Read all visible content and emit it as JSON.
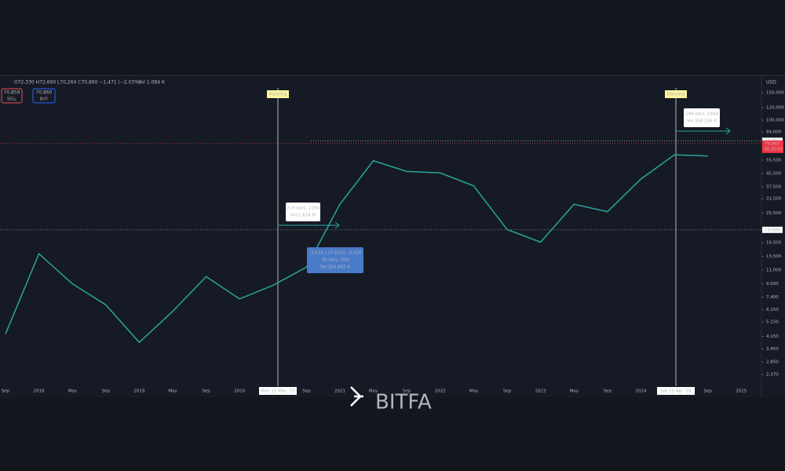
{
  "chart_data": {
    "type": "line",
    "log_scale": true,
    "color": "#26a69a",
    "legend": {
      "ohlc": "O72,330 H72,660 L70,264 C70,860 −1,471 (−2.03%)",
      "volume": "Vol 1.084 K",
      "sell_price": "70,859",
      "sell": "SELL",
      "buy_price": "70,860",
      "buy": "BUY"
    },
    "currency": "USD",
    "categories": [
      "Sep",
      "2018",
      "May",
      "Sep",
      "2019",
      "May",
      "Sep",
      "2020",
      null,
      "Sep",
      "2021",
      "May",
      "Sep",
      "2022",
      "May",
      "Sep",
      "2023",
      "May",
      "Sep",
      "2024",
      null,
      "Sep",
      "2025"
    ],
    "values": [
      4300,
      14000,
      9000,
      6600,
      3800,
      6000,
      10000,
      7200,
      8800,
      11500,
      29000,
      55000,
      47000,
      46000,
      38000,
      20000,
      16600,
      29000,
      26000,
      42000,
      60000,
      59000,
      null
    ],
    "ylim": [
      2040,
      191000
    ],
    "yticks": [
      {
        "value": 150000,
        "label": "150,000"
      },
      {
        "value": 120000,
        "label": "120,000"
      },
      {
        "value": 100000,
        "label": "100,000"
      },
      {
        "value": 84000,
        "label": "84,000"
      },
      {
        "value": 55500,
        "label": "55,500"
      },
      {
        "value": 45500,
        "label": "45,500"
      },
      {
        "value": 37500,
        "label": "37,500"
      },
      {
        "value": 31500,
        "label": "31,500"
      },
      {
        "value": 25500,
        "label": "25,500"
      },
      {
        "value": 16500,
        "label": "16,500"
      },
      {
        "value": 13500,
        "label": "13,500"
      },
      {
        "value": 11000,
        "label": "11,000"
      },
      {
        "value": 9000,
        "label": "9,000"
      },
      {
        "value": 7400,
        "label": "7,400"
      },
      {
        "value": 6150,
        "label": "6,150"
      },
      {
        "value": 5150,
        "label": "5,150"
      },
      {
        "value": 4150,
        "label": "4,150"
      },
      {
        "value": 3450,
        "label": "3,450"
      },
      {
        "value": 2850,
        "label": "2,850"
      },
      {
        "value": 2370,
        "label": "2,370"
      }
    ],
    "levels": [
      {
        "value": 73755,
        "label": "73,755"
      },
      {
        "value": 19898,
        "label": "19,898"
      }
    ],
    "last_price": {
      "value": 70860,
      "label": "70,860"
    },
    "countdown": "06:30:59",
    "halvings": [
      {
        "label": "Halving",
        "date": "Mon 11 May '20"
      },
      {
        "label": "Halving",
        "date": "Sat 20 Apr '24"
      }
    ],
    "measures": [
      {
        "lines": [
          "219 bars, 219d",
          "Vol 1.624 M"
        ]
      },
      {
        "lines": [
          "-3,524 (-17.81%) -3,524",
          "30 bars, 30d",
          "Vol 254.843 K"
        ]
      },
      {
        "lines": [
          "194 bars, 194d",
          "Vol 358.205 K"
        ]
      }
    ],
    "logo": "BITFA"
  }
}
